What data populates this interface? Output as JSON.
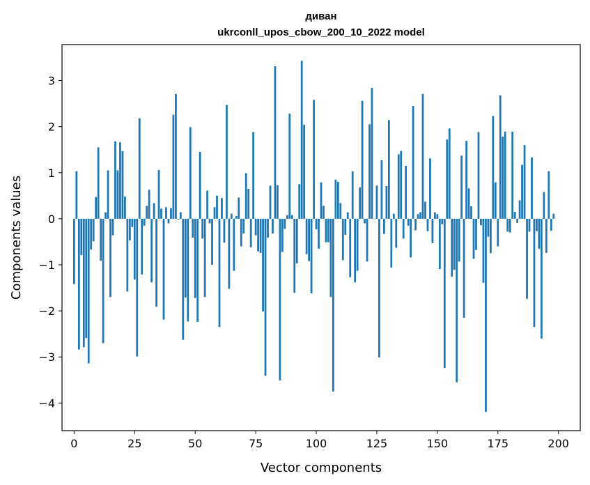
{
  "chart_data": {
    "type": "bar",
    "title": "диван",
    "subtitle": "ukrconll_upos_cbow_200_10_2022 model",
    "xlabel": "Vector components",
    "ylabel": "Components values",
    "xlim": [
      -5,
      209
    ],
    "ylim": [
      -4.6,
      3.78
    ],
    "xticks": [
      0,
      25,
      50,
      75,
      100,
      125,
      150,
      175,
      200
    ],
    "yticks": [
      -4,
      -3,
      -2,
      -1,
      0,
      1,
      2,
      3
    ],
    "bar_color": "#1f77b4",
    "grid": false,
    "values": [
      -1.42,
      1.03,
      -2.84,
      -0.79,
      -2.79,
      -2.59,
      -3.14,
      -0.67,
      -0.49,
      0.47,
      1.55,
      -0.91,
      -2.7,
      0.14,
      1.05,
      -1.7,
      -0.36,
      1.68,
      1.05,
      1.66,
      1.47,
      0.48,
      -1.58,
      -0.47,
      -0.18,
      -1.32,
      -2.99,
      2.18,
      -1.21,
      -0.15,
      0.28,
      0.63,
      -1.38,
      0.34,
      -1.91,
      1.06,
      0.22,
      -2.19,
      0.25,
      -0.1,
      0.23,
      2.26,
      2.71,
      -0.02,
      0.14,
      -2.63,
      -1.71,
      -2.23,
      1.99,
      -0.41,
      -1.72,
      -2.24,
      1.45,
      -0.43,
      -1.7,
      0.61,
      -0.1,
      -1.0,
      0.25,
      0.5,
      -2.35,
      0.45,
      -0.52,
      2.47,
      -1.52,
      0.11,
      -1.13,
      0.06,
      0.46,
      -0.6,
      -0.32,
      0.99,
      0.65,
      -0.62,
      1.88,
      -0.36,
      -0.71,
      -0.74,
      -2.01,
      -3.41,
      -0.41,
      0.72,
      -0.32,
      3.31,
      0.73,
      -3.51,
      -0.72,
      -0.22,
      0.08,
      2.28,
      0.08,
      -1.61,
      -0.97,
      0.75,
      3.43,
      2.04,
      -0.77,
      -0.92,
      -1.62,
      2.58,
      -0.23,
      -0.65,
      0.79,
      0.28,
      -0.51,
      -0.51,
      -1.7,
      -3.75,
      0.85,
      0.8,
      0.34,
      -0.9,
      -0.35,
      0.14,
      -1.27,
      1.03,
      -1.38,
      -1.13,
      0.68,
      2.56,
      -0.1,
      -0.93,
      2.05,
      2.84,
      -0.01,
      0.72,
      -3.01,
      1.27,
      -0.33,
      0.71,
      2.14,
      -1.06,
      0.11,
      -0.63,
      1.4,
      1.47,
      -0.43,
      1.15,
      -0.15,
      -0.84,
      2.45,
      -0.25,
      0.1,
      0.14,
      2.71,
      0.37,
      -0.27,
      1.31,
      -0.53,
      0.14,
      0.1,
      -1.09,
      -0.12,
      -3.24,
      1.72,
      1.96,
      -1.26,
      -1.11,
      -3.55,
      -0.93,
      1.37,
      -2.15,
      1.69,
      0.66,
      0.27,
      -0.87,
      -0.68,
      1.88,
      -0.14,
      -1.39,
      -4.19,
      -0.39,
      -0.75,
      2.23,
      0.79,
      -0.6,
      2.68,
      1.78,
      1.89,
      -0.28,
      -0.3,
      1.89,
      0.15,
      -0.09,
      0.4,
      1.17,
      1.6,
      -1.74,
      -0.28,
      1.33,
      -2.35,
      -0.27,
      -0.65,
      -2.6,
      0.58,
      -0.74,
      1.03,
      -0.26,
      0.11
    ]
  }
}
